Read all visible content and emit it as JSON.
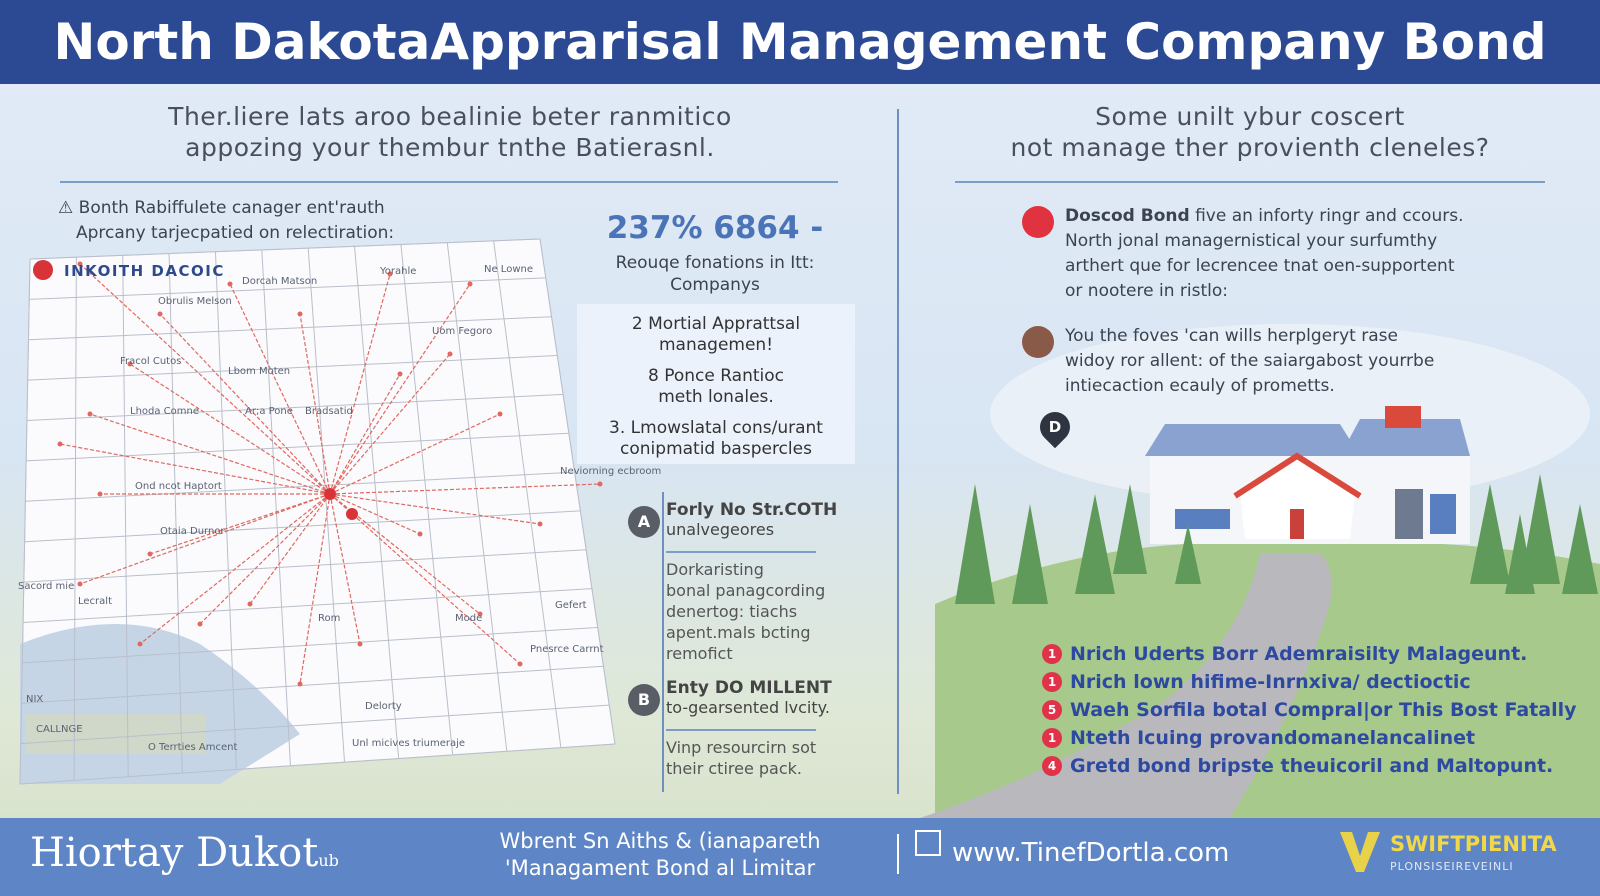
{
  "header": {
    "title": "North DakotaApprarisal Management Company Bond"
  },
  "left": {
    "heading": [
      "Ther.liere lats aroo bealinie beter ranmitico",
      "appozing your thembur tnthe Batierasnl."
    ],
    "note": [
      "Bonth Rabiffulete canager ent'rauth",
      "Aprcany tarjecpatied on relectiration:"
    ],
    "map": {
      "label": "INKOITH DACOIC",
      "places": [
        "Dorcah Matson",
        "Yorahle",
        "Ne Lowne",
        "Obrulis Melson",
        "Uom Fegoro",
        "Fracol Cutos",
        "Lbom Moten",
        "Lhoda Comne",
        "Ar;a Pone",
        "Bradsatid",
        "Ond ncot Haptort",
        "Otaia Durnor",
        "Neviorning ecbroom",
        "Sacord mie",
        "Lecralt",
        "Rom",
        "Mode",
        "Gefert",
        "Pnesrce Carrnt",
        "NIX",
        "CALLNGE",
        "Delorty",
        "O Terrties Amcent",
        "Unl micives triumeraje"
      ]
    }
  },
  "middle": {
    "stat": "237% 6864 -",
    "stat_caption": [
      "Reouqe fonations in Itt:",
      "Companys"
    ],
    "list": [
      [
        "2 Mortial Apprattsal",
        "managemen!"
      ],
      [
        "8 Ponce Rantioc",
        "meth lonales."
      ],
      [
        "3. Lmowslatal cons/urant",
        "conipmatid baspercles"
      ]
    ],
    "timeline": [
      {
        "badge": "A",
        "title": "Forly No Str.COTH",
        "subtitle": "unalvegeores",
        "text": [
          "Dorkaristing",
          "bonal panagcording",
          "denertog: tiachs",
          "apent.mals bcting",
          "remofict"
        ]
      },
      {
        "badge": "B",
        "title": "Enty DO MILLENT",
        "subtitle": "to-gearsented lvcity.",
        "text": [
          "Vinp resourcirn sot",
          "their ctiree pack."
        ]
      }
    ]
  },
  "right": {
    "heading": [
      "Some unilt ybur coscert",
      "not manage ther provienth cleneles?"
    ],
    "items": [
      {
        "bold": "Doscod Bond",
        "text": [
          " five an inforty ringr and ccours.",
          "North jonal managernistical your surfumthy",
          "arthert que for lecrencee tnat oen-supportent",
          "or nootere in ristlo:"
        ]
      },
      {
        "bold": "",
        "text": [
          "You the foves 'can wills herplgeryt rase",
          "widoy ror allent: of the saiargabost yourrbe",
          "intiecaction ecauly of prometts."
        ]
      }
    ],
    "pin": "D",
    "numbered": [
      "Nrich Uderts Borr Ademraisilty Malageunt.",
      "Nrich lown hifime-Inrnxiva/ dectioctic",
      "Waeh Sorfila botal Compral|or This Bost Fatally",
      "Nteth Icuing provandomanelancalinet",
      "Gretd bond bripste theuicoril and Maltopunt."
    ],
    "numbers": [
      "1",
      "1",
      "5",
      "1",
      "4"
    ]
  },
  "footer": {
    "logo": "Hiortay Dukot",
    "logo_small": "ub",
    "tagline": [
      "Wbrent Sn Aiths & (ianapareth",
      "'Managament Bond al Limitar"
    ],
    "url": "www.TinefDortla.com",
    "brand": "SWIFTPIENITA",
    "brand_sub": "PLONSISEIREVEINLI"
  }
}
